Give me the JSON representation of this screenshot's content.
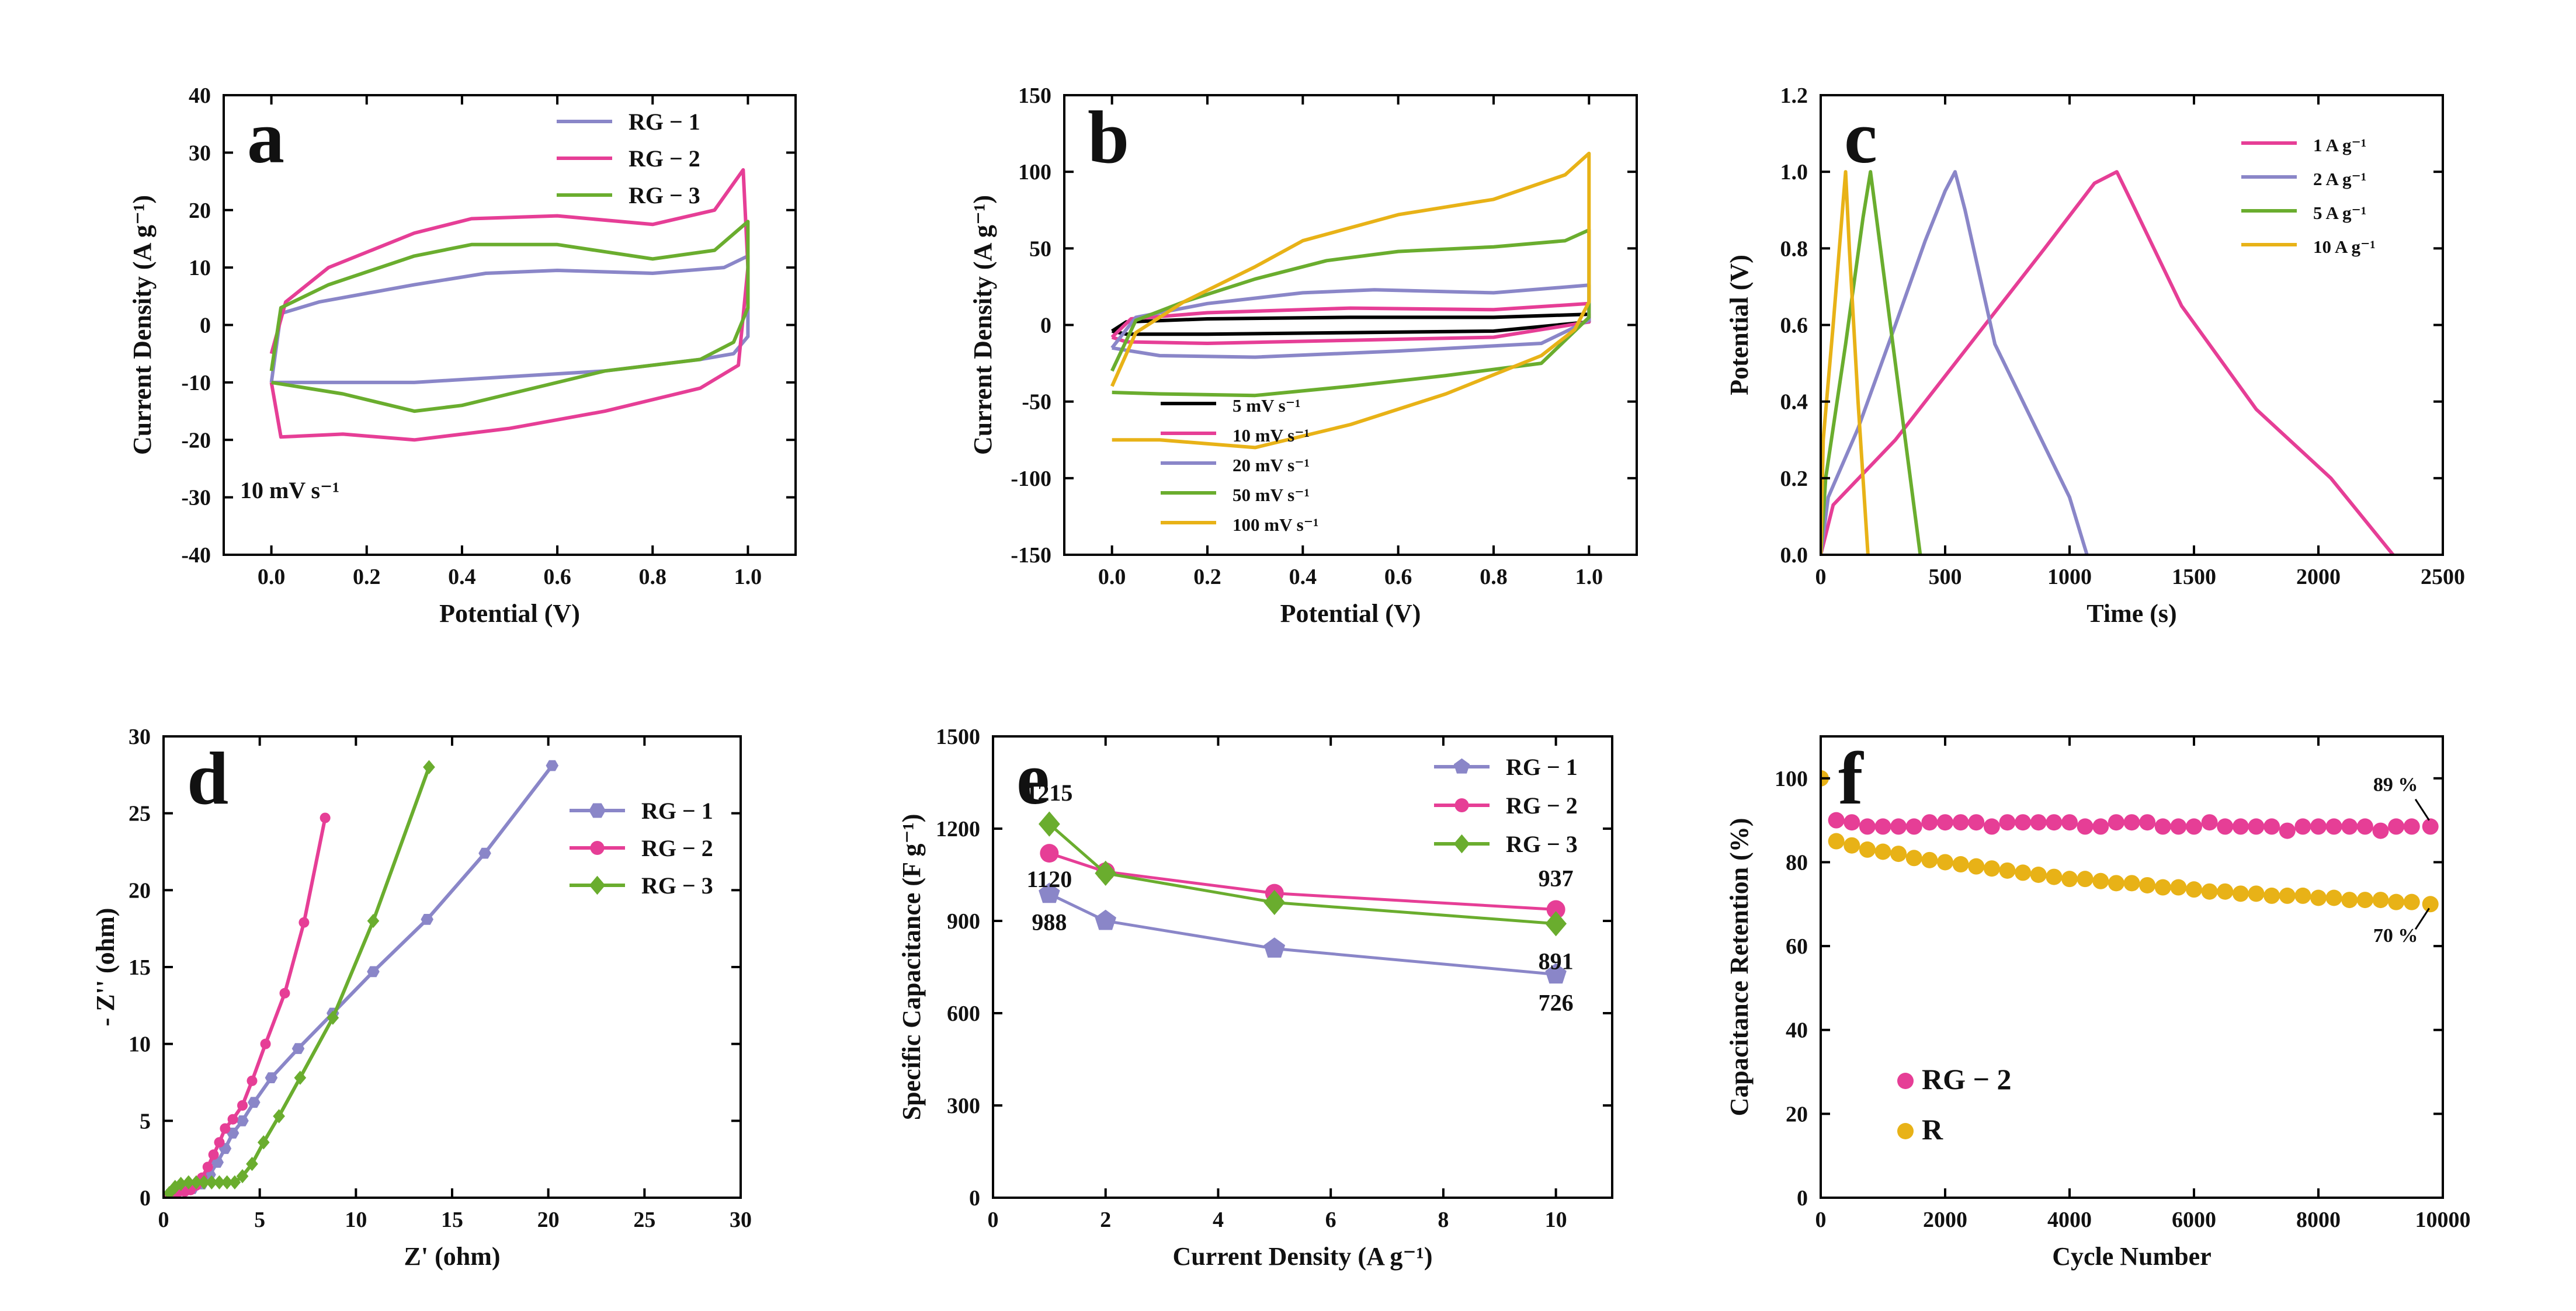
{
  "colors": {
    "RG-1": "#8a86c8",
    "RG-2": "#e63e96",
    "RG-3": "#6aad2e",
    "black": "#000000",
    "orange": "#e8b217"
  },
  "chart_data": [
    {
      "id": "a",
      "type": "line",
      "panel_label": "a",
      "xlabel": "Potential (V)",
      "ylabel": "Current Density (A g⁻¹)",
      "xlim": [
        -0.1,
        1.1
      ],
      "ylim": [
        -40,
        40
      ],
      "xticks": [
        0.0,
        0.2,
        0.4,
        0.6,
        0.8,
        1.0
      ],
      "xtick_labels": [
        "0.0",
        "0.2",
        "0.4",
        "0.6",
        "0.8",
        "1.0"
      ],
      "yticks": [
        -40,
        -30,
        -20,
        -10,
        0,
        10,
        20,
        30,
        40
      ],
      "ytick_labels": [
        "-40",
        "-30",
        "-20",
        "-10",
        "0",
        "10",
        "20",
        "30",
        "40"
      ],
      "annotation": "10 mV s⁻¹",
      "legend_position": "top-right",
      "series": [
        {
          "name": "RG − 1",
          "color_key": "RG-1",
          "x": [
            0.0,
            0.02,
            0.1,
            0.3,
            0.45,
            0.6,
            0.8,
            0.95,
            1.0,
            1.0,
            0.97,
            0.9,
            0.7,
            0.5,
            0.3,
            0.1,
            0.0
          ],
          "y": [
            -10,
            2,
            4,
            7,
            9,
            9.5,
            9,
            10,
            12,
            -2,
            -5,
            -6,
            -8,
            -9,
            -10,
            -10,
            -10
          ]
        },
        {
          "name": "RG − 2",
          "color_key": "RG-2",
          "x": [
            0.0,
            0.03,
            0.12,
            0.3,
            0.42,
            0.6,
            0.8,
            0.93,
            0.99,
            1.0,
            0.98,
            0.9,
            0.7,
            0.5,
            0.3,
            0.15,
            0.02,
            0.0
          ],
          "y": [
            -5,
            4,
            10,
            16,
            18.5,
            19,
            17.5,
            20,
            27,
            10,
            -7,
            -11,
            -15,
            -18,
            -20,
            -19,
            -19.5,
            -10
          ]
        },
        {
          "name": "RG − 3",
          "color_key": "RG-3",
          "x": [
            0.0,
            0.02,
            0.12,
            0.3,
            0.42,
            0.6,
            0.8,
            0.93,
            1.0,
            1.0,
            0.97,
            0.9,
            0.7,
            0.5,
            0.4,
            0.3,
            0.15,
            0.0
          ],
          "y": [
            -8,
            3,
            7,
            12,
            14,
            14,
            11.5,
            13,
            18,
            3,
            -3,
            -6,
            -8,
            -12,
            -14,
            -15,
            -12,
            -10
          ]
        }
      ]
    },
    {
      "id": "b",
      "type": "line",
      "panel_label": "b",
      "xlabel": "Potential (V)",
      "ylabel": "Current Density (A g⁻¹)",
      "xlim": [
        -0.1,
        1.1
      ],
      "ylim": [
        -150,
        150
      ],
      "xticks": [
        0.0,
        0.2,
        0.4,
        0.6,
        0.8,
        1.0
      ],
      "xtick_labels": [
        "0.0",
        "0.2",
        "0.4",
        "0.6",
        "0.8",
        "1.0"
      ],
      "yticks": [
        -150,
        -100,
        -50,
        0,
        50,
        100,
        150
      ],
      "ytick_labels": [
        "-150",
        "-100",
        "-50",
        "0",
        "50",
        "100",
        "150"
      ],
      "legend_position": "bottom-right",
      "series": [
        {
          "name": "5 mV s⁻¹",
          "color_key": "black",
          "x": [
            0.0,
            0.03,
            0.2,
            0.5,
            0.8,
            1.0,
            1.0,
            0.8,
            0.5,
            0.2,
            0.03,
            0.0
          ],
          "y": [
            -4,
            2,
            4,
            5,
            5,
            7,
            2,
            -4,
            -5,
            -6,
            -6,
            -4
          ]
        },
        {
          "name": "10 mV s⁻¹",
          "color_key": "RG-2",
          "x": [
            0.0,
            0.04,
            0.2,
            0.5,
            0.8,
            1.0,
            1.0,
            0.8,
            0.5,
            0.2,
            0.03,
            0.0
          ],
          "y": [
            -8,
            4,
            8,
            11,
            10,
            14,
            2,
            -8,
            -10,
            -12,
            -11,
            -8
          ]
        },
        {
          "name": "20 mV s⁻¹",
          "color_key": "RG-1",
          "x": [
            0.0,
            0.05,
            0.2,
            0.4,
            0.55,
            0.8,
            1.0,
            1.0,
            0.9,
            0.6,
            0.3,
            0.1,
            0.0
          ],
          "y": [
            -15,
            5,
            14,
            21,
            23,
            21,
            26,
            3,
            -12,
            -17,
            -21,
            -20,
            -15
          ]
        },
        {
          "name": "50 mV s⁻¹",
          "color_key": "RG-3",
          "x": [
            0.0,
            0.05,
            0.15,
            0.3,
            0.45,
            0.6,
            0.8,
            0.95,
            1.0,
            1.0,
            0.9,
            0.7,
            0.5,
            0.3,
            0.1,
            0.0
          ],
          "y": [
            -30,
            3,
            15,
            30,
            42,
            48,
            51,
            55,
            62,
            5,
            -25,
            -33,
            -40,
            -46,
            -45,
            -44
          ]
        },
        {
          "name": "100 mV s⁻¹",
          "color_key": "orange",
          "x": [
            0.0,
            0.05,
            0.15,
            0.3,
            0.4,
            0.6,
            0.8,
            0.95,
            1.0,
            1.0,
            0.97,
            0.9,
            0.7,
            0.5,
            0.3,
            0.1,
            0.0
          ],
          "y": [
            -40,
            -5,
            15,
            38,
            55,
            72,
            82,
            98,
            112,
            15,
            -3,
            -20,
            -45,
            -65,
            -80,
            -75,
            -75
          ]
        }
      ]
    },
    {
      "id": "c",
      "type": "line",
      "panel_label": "c",
      "xlabel": "Time (s)",
      "ylabel": "Potential (V)",
      "xlim": [
        0,
        2500
      ],
      "ylim": [
        0.0,
        1.2
      ],
      "xticks": [
        0,
        500,
        1000,
        1500,
        2000,
        2500
      ],
      "xtick_labels": [
        "0",
        "500",
        "1000",
        "1500",
        "2000",
        "2500"
      ],
      "yticks": [
        0.0,
        0.2,
        0.4,
        0.6,
        0.8,
        1.0,
        1.2
      ],
      "ytick_labels": [
        "0.0",
        "0.2",
        "0.4",
        "0.6",
        "0.8",
        "1.0",
        "1.2"
      ],
      "legend_position": "top-right",
      "series": [
        {
          "name": "1 A g⁻¹",
          "color_key": "RG-2",
          "x": [
            0,
            50,
            300,
            600,
            900,
            1100,
            1190,
            1250,
            1450,
            1750,
            2050,
            2300
          ],
          "y": [
            0.0,
            0.13,
            0.3,
            0.55,
            0.8,
            0.97,
            1.0,
            0.92,
            0.65,
            0.38,
            0.2,
            0.0
          ]
        },
        {
          "name": "2 A g⁻¹",
          "color_key": "RG-1",
          "x": [
            0,
            30,
            150,
            300,
            420,
            500,
            540,
            580,
            700,
            850,
            1000,
            1070
          ],
          "y": [
            0.0,
            0.15,
            0.33,
            0.6,
            0.82,
            0.95,
            1.0,
            0.9,
            0.55,
            0.35,
            0.15,
            0.0
          ]
        },
        {
          "name": "5 A g⁻¹",
          "color_key": "RG-3",
          "x": [
            0,
            20,
            100,
            170,
            200,
            230,
            290,
            350,
            400
          ],
          "y": [
            0.0,
            0.2,
            0.55,
            0.88,
            1.0,
            0.85,
            0.55,
            0.25,
            0.0
          ]
        },
        {
          "name": "10 A g⁻¹",
          "color_key": "orange",
          "x": [
            0,
            10,
            50,
            90,
            100,
            115,
            150,
            190
          ],
          "y": [
            0.0,
            0.3,
            0.6,
            0.92,
            1.0,
            0.8,
            0.4,
            0.0
          ]
        }
      ]
    },
    {
      "id": "d",
      "type": "scatter",
      "panel_label": "d",
      "xlabel": "Z' (ohm)",
      "ylabel": "- Z'' (ohm)",
      "xlim": [
        0,
        30
      ],
      "ylim": [
        0,
        30
      ],
      "xticks": [
        0,
        5,
        10,
        15,
        20,
        25,
        30
      ],
      "xtick_labels": [
        "0",
        "5",
        "10",
        "15",
        "20",
        "25",
        "30"
      ],
      "yticks": [
        0,
        5,
        10,
        15,
        20,
        25,
        30
      ],
      "ytick_labels": [
        "0",
        "5",
        "10",
        "15",
        "20",
        "25",
        "30"
      ],
      "legend_position": "top-right",
      "series": [
        {
          "name": "RG − 1",
          "color_key": "RG-1",
          "marker": "hexagon",
          "x": [
            0.3,
            0.6,
            1.0,
            1.5,
            2.0,
            2.4,
            2.8,
            3.2,
            3.6,
            4.1,
            4.7,
            5.6,
            7.0,
            8.8,
            10.9,
            13.7,
            16.7,
            20.2
          ],
          "y": [
            0.2,
            0.4,
            0.5,
            0.6,
            0.9,
            1.5,
            2.3,
            3.2,
            4.2,
            5.0,
            6.2,
            7.8,
            9.7,
            12.0,
            14.7,
            18.1,
            22.4,
            28.1
          ]
        },
        {
          "name": "RG − 2",
          "color_key": "RG-2",
          "marker": "circle",
          "x": [
            0.2,
            0.5,
            0.8,
            1.1,
            1.4,
            1.7,
            2.0,
            2.3,
            2.6,
            2.9,
            3.2,
            3.6,
            4.1,
            4.6,
            5.3,
            6.3,
            7.3,
            8.4
          ],
          "y": [
            0.1,
            0.3,
            0.4,
            0.4,
            0.5,
            0.8,
            1.3,
            2.0,
            2.8,
            3.6,
            4.5,
            5.1,
            6.0,
            7.6,
            10.0,
            13.3,
            17.9,
            24.7
          ]
        },
        {
          "name": "RG − 3",
          "color_key": "RG-3",
          "marker": "diamond",
          "x": [
            0.3,
            0.6,
            0.9,
            1.3,
            1.7,
            2.1,
            2.5,
            2.9,
            3.3,
            3.7,
            4.1,
            4.6,
            5.2,
            6.0,
            7.1,
            8.8,
            10.9,
            13.8
          ],
          "y": [
            0.3,
            0.7,
            0.9,
            1.0,
            1.0,
            1.0,
            1.0,
            1.0,
            1.0,
            1.0,
            1.4,
            2.2,
            3.6,
            5.3,
            7.8,
            11.7,
            18.0,
            28.0
          ]
        }
      ]
    },
    {
      "id": "e",
      "type": "line",
      "panel_label": "e",
      "xlabel": "Current Density (A g⁻¹)",
      "ylabel": "Specific Capacitance (F g⁻¹)",
      "xlim": [
        0,
        11
      ],
      "ylim": [
        0,
        1500
      ],
      "xticks": [
        0,
        2,
        4,
        6,
        8,
        10
      ],
      "xtick_labels": [
        "0",
        "2",
        "4",
        "6",
        "8",
        "10"
      ],
      "yticks": [
        0,
        300,
        600,
        900,
        1200,
        1500
      ],
      "ytick_labels": [
        "0",
        "300",
        "600",
        "900",
        "1200",
        "1500"
      ],
      "legend_position": "top-right",
      "x": [
        1,
        2,
        5,
        10
      ],
      "series": [
        {
          "name": "RG − 1",
          "color_key": "RG-1",
          "marker": "pentagon",
          "values": [
            988,
            900,
            810,
            726
          ]
        },
        {
          "name": "RG − 2",
          "color_key": "RG-2",
          "marker": "circle",
          "values": [
            1120,
            1060,
            990,
            937
          ]
        },
        {
          "name": "RG − 3",
          "color_key": "RG-3",
          "marker": "diamond",
          "values": [
            1215,
            1055,
            960,
            891
          ]
        }
      ],
      "data_labels": [
        {
          "text": "1215",
          "x": 1,
          "y": 1215,
          "anchor": "above"
        },
        {
          "text": "1120",
          "x": 1,
          "y": 1120,
          "anchor": "below"
        },
        {
          "text": "988",
          "x": 1,
          "y": 988,
          "anchor": "below"
        },
        {
          "text": "937",
          "x": 10,
          "y": 937,
          "anchor": "above"
        },
        {
          "text": "891",
          "x": 10,
          "y": 891,
          "anchor": "below"
        },
        {
          "text": "726",
          "x": 10,
          "y": 726,
          "anchor": "below"
        }
      ]
    },
    {
      "id": "f",
      "type": "scatter",
      "panel_label": "f",
      "xlabel": "Cycle Number",
      "ylabel": "Capacitance Retention (%)",
      "xlim": [
        0,
        10000
      ],
      "ylim": [
        0,
        110
      ],
      "xticks": [
        0,
        2000,
        4000,
        6000,
        8000,
        10000
      ],
      "xtick_labels": [
        "0",
        "2000",
        "4000",
        "6000",
        "8000",
        "10000"
      ],
      "yticks": [
        0,
        20,
        40,
        60,
        80,
        100
      ],
      "ytick_labels": [
        "0",
        "20",
        "40",
        "60",
        "80",
        "100"
      ],
      "legend_position": "bottom-left",
      "series": [
        {
          "name": "RG − 2",
          "color_key": "RG-2",
          "marker": "circle",
          "x": [
            250,
            500,
            750,
            1000,
            1250,
            1500,
            1750,
            2000,
            2250,
            2500,
            2750,
            3000,
            3250,
            3500,
            3750,
            4000,
            4250,
            4500,
            4750,
            5000,
            5250,
            5500,
            5750,
            6000,
            6250,
            6500,
            6750,
            7000,
            7250,
            7500,
            7750,
            8000,
            8250,
            8500,
            8750,
            9000,
            9250,
            9500,
            9800
          ],
          "y": [
            90,
            89.5,
            88.5,
            88.5,
            88.5,
            88.5,
            89.5,
            89.5,
            89.5,
            89.5,
            88.5,
            89.5,
            89.5,
            89.5,
            89.5,
            89.5,
            88.5,
            88.5,
            89.5,
            89.5,
            89.5,
            88.5,
            88.5,
            88.5,
            89.5,
            88.5,
            88.5,
            88.5,
            88.5,
            87.5,
            88.5,
            88.5,
            88.5,
            88.5,
            88.5,
            87.5,
            88.5,
            88.5,
            88.5
          ]
        },
        {
          "name": "R",
          "color_key": "orange",
          "marker": "circle",
          "x": [
            0,
            250,
            500,
            750,
            1000,
            1250,
            1500,
            1750,
            2000,
            2250,
            2500,
            2750,
            3000,
            3250,
            3500,
            3750,
            4000,
            4250,
            4500,
            4750,
            5000,
            5250,
            5500,
            5750,
            6000,
            6250,
            6500,
            6750,
            7000,
            7250,
            7500,
            7750,
            8000,
            8250,
            8500,
            8750,
            9000,
            9250,
            9500,
            9800
          ],
          "y": [
            100,
            85,
            84,
            83,
            82.5,
            82,
            81,
            80.5,
            80,
            79.5,
            79,
            78.5,
            78,
            77.5,
            77,
            76.5,
            76,
            76,
            75.5,
            75,
            75,
            74.5,
            74,
            74,
            73.5,
            73,
            73,
            72.5,
            72.5,
            72,
            72,
            72,
            71.5,
            71.5,
            71,
            71,
            71,
            70.5,
            70.5,
            70
          ]
        }
      ],
      "annotations": [
        {
          "text": "89 %",
          "x": 9600,
          "y": 97
        },
        {
          "text": "70 %",
          "x": 9600,
          "y": 61
        }
      ]
    }
  ]
}
